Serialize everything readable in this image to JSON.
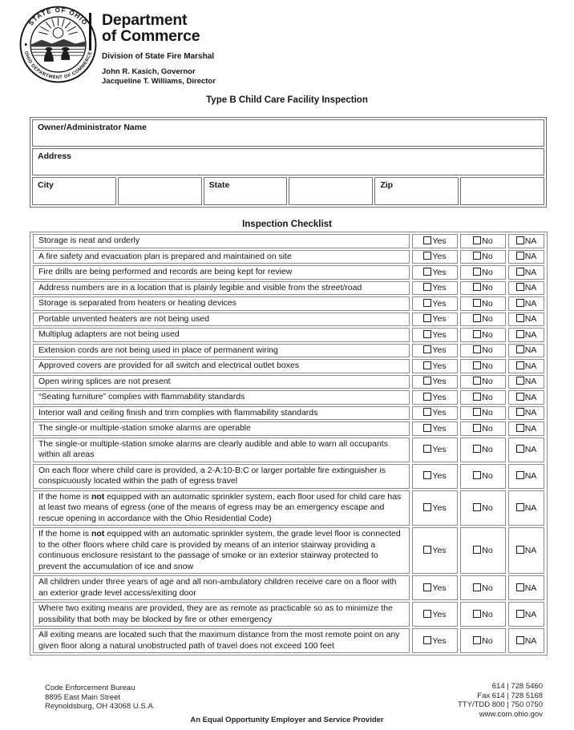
{
  "header": {
    "seal_top": "STATE OF OHIO",
    "seal_bottom": "OHIO DEPARTMENT OF COMMERCE",
    "dept_line1": "Department",
    "dept_line2": "of Commerce",
    "division": "Division of State Fire Marshal",
    "governor": "John R. Kasich, Governor",
    "director": "Jacqueline T. Williams, Director"
  },
  "title": "Type B Child Care Facility Inspection",
  "form": {
    "owner_label": "Owner/Administrator Name",
    "address_label": "Address",
    "city_label": "City",
    "state_label": "State",
    "zip_label": "Zip"
  },
  "checklist": {
    "title": "Inspection Checklist",
    "options": [
      "Yes",
      "No",
      "NA"
    ],
    "items": [
      [
        {
          "t": "Storage is neat and orderly",
          "b": false
        }
      ],
      [
        {
          "t": "A fire safety and evacuation plan is prepared and maintained on site",
          "b": false
        }
      ],
      [
        {
          "t": "Fire drills are being performed and records are being kept for review",
          "b": false
        }
      ],
      [
        {
          "t": "Address numbers are in a location that is plainly legible and visible from the street/road",
          "b": false
        }
      ],
      [
        {
          "t": "Storage is separated from heaters or heating devices",
          "b": false
        }
      ],
      [
        {
          "t": "Portable unvented heaters are not being used",
          "b": false
        }
      ],
      [
        {
          "t": "Multiplug adapters are not being used",
          "b": false
        }
      ],
      [
        {
          "t": "Extension cords are not being used in place of permanent wiring",
          "b": false
        }
      ],
      [
        {
          "t": "Approved covers are provided for all switch and electrical outlet boxes",
          "b": false
        }
      ],
      [
        {
          "t": "Open wiring splices are not present",
          "b": false
        }
      ],
      [
        {
          "t": "“Seating furniture” complies with flammability standards",
          "b": false
        }
      ],
      [
        {
          "t": "Interior wall and ceiling finish and trim complies with flammability standards",
          "b": false
        }
      ],
      [
        {
          "t": "The single-or multiple-station smoke alarms are operable",
          "b": false
        }
      ],
      [
        {
          "t": "The single-or multiple-station smoke alarms are clearly audible and able to warn all occupants within all areas",
          "b": false
        }
      ],
      [
        {
          "t": "On each floor where child care is provided, a 2-A:10-B:C or larger portable fire extinguisher is conspicuously located within the path of egress travel",
          "b": false
        }
      ],
      [
        {
          "t": "If the home is ",
          "b": false
        },
        {
          "t": "not",
          "b": true
        },
        {
          "t": " equipped with an automatic sprinkler system, each floor used for child care has at least two means of egress (one of the means of egress may be an emergency escape and rescue opening in accordance with the Ohio Residential Code)",
          "b": false
        }
      ],
      [
        {
          "t": "If the home is ",
          "b": false
        },
        {
          "t": "not",
          "b": true
        },
        {
          "t": " equipped with an automatic sprinkler system, the grade level floor is connected to the other floors where child care is provided by means of an interior stairway providing a continuous enclosure resistant to the passage of smoke or an exterior stairway protected to prevent the accumulation of ice and snow",
          "b": false
        }
      ],
      [
        {
          "t": "All children under three years of age and all non-ambulatory children receive care on a floor with an exterior grade level access/exiting door",
          "b": false
        }
      ],
      [
        {
          "t": "Where two exiting means are provided, they are as remote as practicable so as to minimize the possibility that both may be blocked by fire or other emergency",
          "b": false
        }
      ],
      [
        {
          "t": "All exiting means are located such that the maximum distance from the most remote point on any given floor along a natural unobstructed path of travel does not exceed 100 feet",
          "b": false
        }
      ]
    ]
  },
  "footer": {
    "address_lines": [
      "Code Enforcement Bureau",
      "8895 East Main Street",
      "Reynoldsburg, OH 43068 U.S.A."
    ],
    "contact_lines": [
      "614 | 728 5460",
      "Fax 614 | 728 5168",
      "TTY/TDD 800 | 750 0750",
      "www.com.ohio.gov"
    ],
    "center_line": "An Equal Opportunity Employer and Service Provider"
  },
  "colors": {
    "table_border": "#8b8b8b",
    "form_border": "#6e6e6e",
    "ink": "#161616"
  }
}
